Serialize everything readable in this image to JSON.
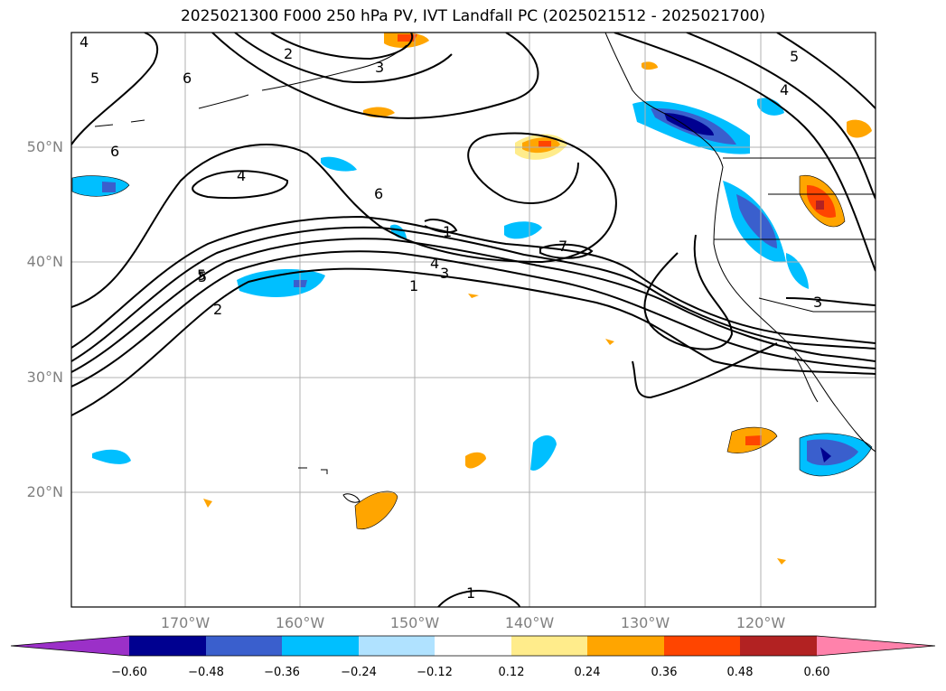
{
  "title": "2025021300 F000 250 hPa PV, IVT Landfall PC (2025021512 - 2025021700)",
  "lat_labels": [
    "50°N",
    "40°N",
    "30°N",
    "20°N"
  ],
  "lon_labels": [
    "170°W",
    "160°W",
    "150°W",
    "140°W",
    "130°W",
    "120°W"
  ],
  "colorbar": {
    "ticks": [
      "−0.60",
      "−0.48",
      "−0.36",
      "−0.24",
      "−0.12",
      "0.12",
      "0.24",
      "0.36",
      "0.48",
      "0.60"
    ],
    "colors": [
      "#9b30c8",
      "#000090",
      "#3a5fcd",
      "#00bfff",
      "#b0e2ff",
      "#ffffff",
      "#ffec8b",
      "#ffa500",
      "#ff4500",
      "#b22222",
      "#ff82ab"
    ]
  },
  "contour_labels": [
    "4",
    "5",
    "6",
    "2",
    "3",
    "5",
    "6",
    "4",
    "6",
    "5",
    "2",
    "1",
    "3",
    "4",
    "7",
    "1",
    "4",
    "5",
    "3",
    "1"
  ]
}
